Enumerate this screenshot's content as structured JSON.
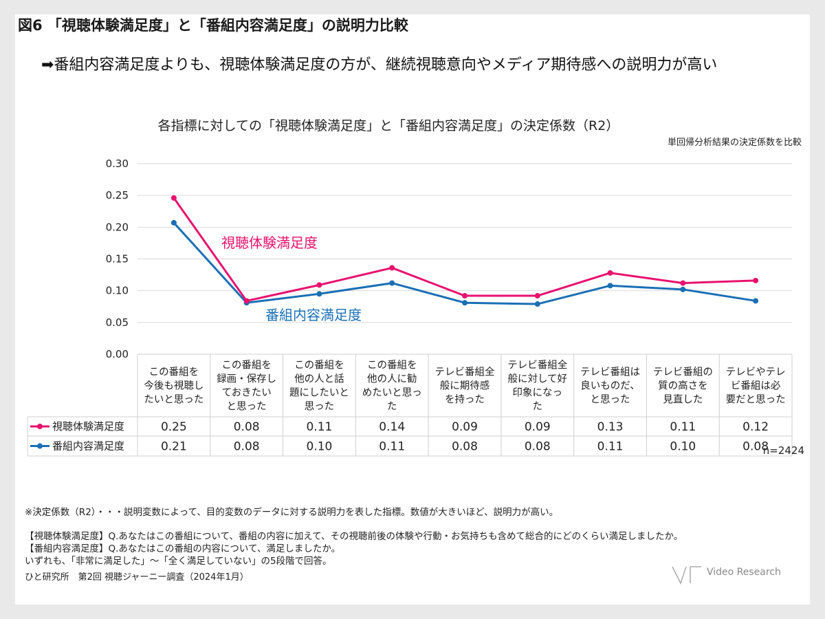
{
  "header": {
    "figure_title": "図6 「視聴体験満足度」と「番組内容満足度」の説明力比較",
    "headline": "➡番組内容満足度よりも、視聴体験満足度の方が、継続視聴意向やメディア期待感への説明力が高い"
  },
  "chart_data": {
    "type": "line",
    "title": "各指標に対しての「視聴体験満足度」と「番組内容満足度」の決定係数（R2）",
    "note": "単回帰分析結果の決定係数を比較",
    "ylim": [
      0,
      0.3
    ],
    "yticks": [
      "0.00",
      "0.05",
      "0.10",
      "0.15",
      "0.20",
      "0.25",
      "0.30"
    ],
    "grid": true,
    "categories": [
      [
        "この番組を",
        "今後も視聴し",
        "たいと思った"
      ],
      [
        "この番組を",
        "録画・保存し",
        "ておきたい",
        "と思った"
      ],
      [
        "この番組を",
        "他の人と話",
        "題にしたいと",
        "思った"
      ],
      [
        "この番組を",
        "他の人に勧",
        "めたいと思っ",
        "た"
      ],
      [
        "テレビ番組全",
        "般に期待感",
        "を持った"
      ],
      [
        "テレビ番組全",
        "般に対して好",
        "印象になっ",
        "た"
      ],
      [
        "テレビ番組は",
        "良いものだ、",
        "と思った"
      ],
      [
        "テレビ番組の",
        "質の高さを",
        "見直した"
      ],
      [
        "テレビやテレ",
        "ビ番組は必",
        "要だと思った"
      ]
    ],
    "series": [
      {
        "name": "視聴体験満足度",
        "color": "#e8126f",
        "values": [
          0.246,
          0.084,
          0.109,
          0.136,
          0.092,
          0.092,
          0.128,
          0.112,
          0.116
        ],
        "labels": [
          "0.25",
          "0.08",
          "0.11",
          "0.14",
          "0.09",
          "0.09",
          "0.13",
          "0.11",
          "0.12"
        ]
      },
      {
        "name": "番組内容満足度",
        "color": "#1a6fb5",
        "values": [
          0.207,
          0.081,
          0.095,
          0.112,
          0.081,
          0.079,
          0.108,
          0.102,
          0.084
        ],
        "labels": [
          "0.21",
          "0.08",
          "0.10",
          "0.11",
          "0.08",
          "0.08",
          "0.11",
          "0.10",
          "0.08"
        ]
      }
    ],
    "n_note": "n=2424"
  },
  "notes": {
    "definition": "※決定係数（R2）・・・説明変数によって、目的変数のデータに対する説明力を表した指標。数値が大きいほど、説明力が高い。",
    "q1": "【視聴体験満足度】Q.あなたはこの番組について、番組の内容に加えて、その視聴前後の体験や行動・お気持ちも含めて総合的にどのくらい満足しましたか。",
    "q2": "【番組内容満足度】Q.あなたはこの番組の内容について、満足しましたか。",
    "scale": "いずれも、「非常に満足した」～「全く満足していない」の5段階で回答。"
  },
  "footer": {
    "source": "ひと研究所　第2回 視聴ジャーニー調査（2024年1月）",
    "logo_text": "Video Research"
  }
}
